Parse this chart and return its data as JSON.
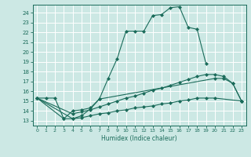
{
  "xlabel": "Humidex (Indice chaleur)",
  "bg_color": "#cce8e4",
  "grid_color": "#ffffff",
  "line_color": "#1a6b5a",
  "xlim": [
    -0.5,
    23.5
  ],
  "ylim": [
    12.5,
    24.8
  ],
  "xticks": [
    0,
    1,
    2,
    3,
    4,
    5,
    6,
    7,
    8,
    9,
    10,
    11,
    12,
    13,
    14,
    15,
    16,
    17,
    18,
    19,
    20,
    21,
    22,
    23
  ],
  "yticks": [
    13,
    14,
    15,
    16,
    17,
    18,
    19,
    20,
    21,
    22,
    23,
    24
  ],
  "line1_x": [
    0,
    1,
    2,
    3,
    4,
    5,
    6,
    7,
    8,
    9,
    10,
    11,
    12,
    13,
    14,
    15,
    16,
    17,
    18,
    19
  ],
  "line1_y": [
    15.3,
    15.3,
    15.3,
    13.2,
    13.2,
    13.5,
    14.2,
    15.2,
    17.3,
    19.3,
    22.1,
    22.1,
    22.1,
    23.7,
    23.8,
    24.5,
    24.6,
    22.5,
    22.3,
    18.8
  ],
  "line2_x": [
    0,
    3,
    4,
    5,
    6,
    7,
    20,
    21,
    22,
    23
  ],
  "line2_y": [
    15.3,
    13.2,
    14.0,
    14.1,
    14.3,
    15.2,
    17.3,
    17.3,
    16.8,
    15.0
  ],
  "line3_x": [
    0,
    4,
    5,
    6,
    7,
    8,
    9,
    10,
    11,
    12,
    13,
    14,
    15,
    16,
    17,
    18,
    19,
    20,
    21,
    22,
    23
  ],
  "line3_y": [
    15.3,
    13.7,
    13.9,
    14.1,
    14.4,
    14.7,
    15.0,
    15.3,
    15.5,
    15.8,
    16.1,
    16.3,
    16.6,
    16.9,
    17.2,
    17.5,
    17.7,
    17.7,
    17.5,
    16.8,
    15.0
  ],
  "line4_x": [
    0,
    4,
    5,
    6,
    7,
    8,
    9,
    10,
    11,
    12,
    13,
    14,
    15,
    16,
    17,
    18,
    19,
    20,
    23
  ],
  "line4_y": [
    15.3,
    13.2,
    13.3,
    13.5,
    13.7,
    13.8,
    14.0,
    14.1,
    14.3,
    14.4,
    14.5,
    14.7,
    14.8,
    15.0,
    15.1,
    15.3,
    15.3,
    15.3,
    15.0
  ]
}
